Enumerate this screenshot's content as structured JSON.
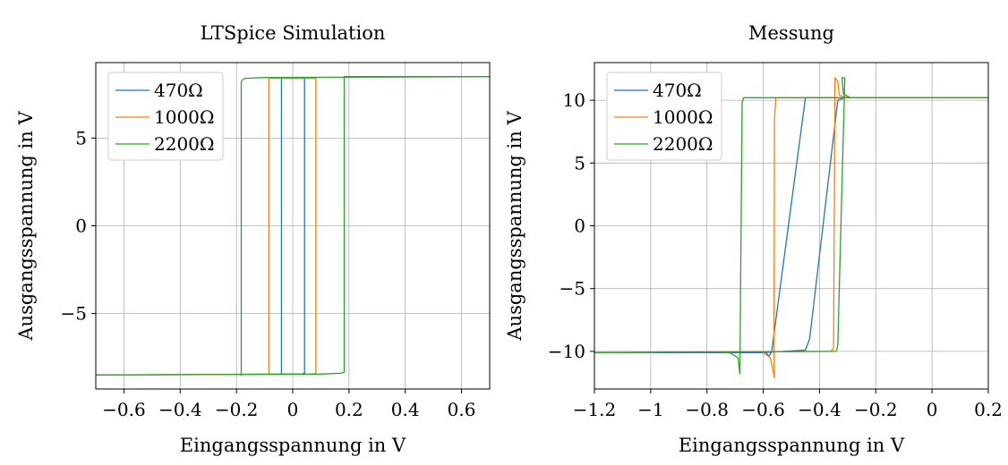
{
  "chart_data": [
    {
      "type": "line",
      "title": "LTSpice Simulation",
      "xlabel": "Eingangsspannung in V",
      "ylabel": "Ausgangsspannung in V",
      "xlim": [
        -0.7,
        0.7
      ],
      "ylim": [
        -9.3,
        9.3
      ],
      "xticks": [
        -0.6,
        -0.4,
        -0.2,
        0,
        0.2,
        0.4,
        0.6
      ],
      "xtick_labels": [
        "−0.6",
        "−0.4",
        "−0.2",
        "0",
        "0.2",
        "0.4",
        "0.6"
      ],
      "yticks": [
        -5,
        0,
        5
      ],
      "ytick_labels": [
        "−5",
        "0",
        "5"
      ],
      "grid": true,
      "legend_position": "top-left",
      "series": [
        {
          "name": "470Ω",
          "color": "#1f77b4",
          "points": [
            [
              -0.7,
              -8.5
            ],
            [
              0.03,
              -8.45
            ],
            [
              0.042,
              -8.4
            ],
            [
              0.042,
              8.4
            ],
            [
              -0.04,
              8.4
            ],
            [
              -0.04,
              -8.45
            ]
          ]
        },
        {
          "name": "1000Ω",
          "color": "#ff7f0e",
          "points": [
            [
              -0.7,
              -8.5
            ],
            [
              0.07,
              -8.45
            ],
            [
              0.082,
              -8.4
            ],
            [
              0.082,
              8.4
            ],
            [
              -0.085,
              8.4
            ],
            [
              -0.085,
              -8.45
            ]
          ]
        },
        {
          "name": "2200Ω",
          "color": "#2ca02c",
          "points": [
            [
              -0.7,
              -8.5
            ],
            [
              0.1,
              -8.45
            ],
            [
              0.17,
              -8.4
            ],
            [
              0.183,
              -8.35
            ],
            [
              0.183,
              8.5
            ],
            [
              0.7,
              8.5
            ],
            [
              -0.1,
              8.45
            ],
            [
              -0.17,
              8.4
            ],
            [
              -0.18,
              8.3
            ],
            [
              -0.183,
              8.2
            ],
            [
              -0.183,
              -8.55
            ]
          ]
        }
      ]
    },
    {
      "type": "line",
      "title": "Messung",
      "xlabel": "Eingangsspannung in V",
      "ylabel": "Ausgangsspannung in V",
      "xlim": [
        -1.2,
        0.2
      ],
      "ylim": [
        -13,
        13
      ],
      "xticks": [
        -1.2,
        -1,
        -0.8,
        -0.6,
        -0.4,
        -0.2,
        0,
        0.2
      ],
      "xtick_labels": [
        "−1.2",
        "−1",
        "−0.8",
        "−0.6",
        "−0.4",
        "−0.2",
        "0",
        "0.2"
      ],
      "yticks": [
        -10,
        -5,
        0,
        5,
        10
      ],
      "ytick_labels": [
        "−10",
        "−5",
        "0",
        "5",
        "10"
      ],
      "grid": true,
      "legend_position": "top-left",
      "series": [
        {
          "name": "470Ω",
          "color": "#1f77b4",
          "points": [
            [
              -1.2,
              -10.1
            ],
            [
              -0.6,
              -10.1
            ],
            [
              -0.56,
              -10.05
            ],
            [
              -0.45,
              -9.9
            ],
            [
              -0.435,
              -9.0
            ],
            [
              -0.335,
              10.0
            ],
            [
              -0.31,
              10.2
            ],
            [
              0.2,
              10.2
            ],
            [
              -0.45,
              10.2
            ],
            [
              -0.57,
              -10.0
            ],
            [
              -0.58,
              -10.4
            ],
            [
              -0.59,
              -10.1
            ]
          ]
        },
        {
          "name": "1000Ω",
          "color": "#ff7f0e",
          "points": [
            [
              -1.2,
              -10.1
            ],
            [
              -0.36,
              -10.0
            ],
            [
              -0.35,
              -9.8
            ],
            [
              -0.345,
              11.8
            ],
            [
              -0.335,
              11.5
            ],
            [
              -0.33,
              10.4
            ],
            [
              -0.3,
              10.2
            ],
            [
              0.2,
              10.2
            ],
            [
              -0.555,
              10.2
            ],
            [
              -0.56,
              8.5
            ],
            [
              -0.562,
              -10.0
            ],
            [
              -0.56,
              -12.1
            ],
            [
              -0.575,
              -10.5
            ],
            [
              -0.6,
              -10.1
            ]
          ]
        },
        {
          "name": "2200Ω",
          "color": "#2ca02c",
          "points": [
            [
              -1.2,
              -10.1
            ],
            [
              -0.34,
              -10.0
            ],
            [
              -0.335,
              -9.5
            ],
            [
              -0.31,
              11.8
            ],
            [
              -0.32,
              11.8
            ],
            [
              -0.315,
              10.5
            ],
            [
              -0.29,
              10.2
            ],
            [
              0.2,
              10.2
            ],
            [
              -0.67,
              10.2
            ],
            [
              -0.675,
              9.8
            ],
            [
              -0.683,
              -11.8
            ],
            [
              -0.69,
              -10.5
            ],
            [
              -0.72,
              -10.1
            ],
            [
              -0.75,
              -10.1
            ]
          ]
        }
      ]
    }
  ]
}
